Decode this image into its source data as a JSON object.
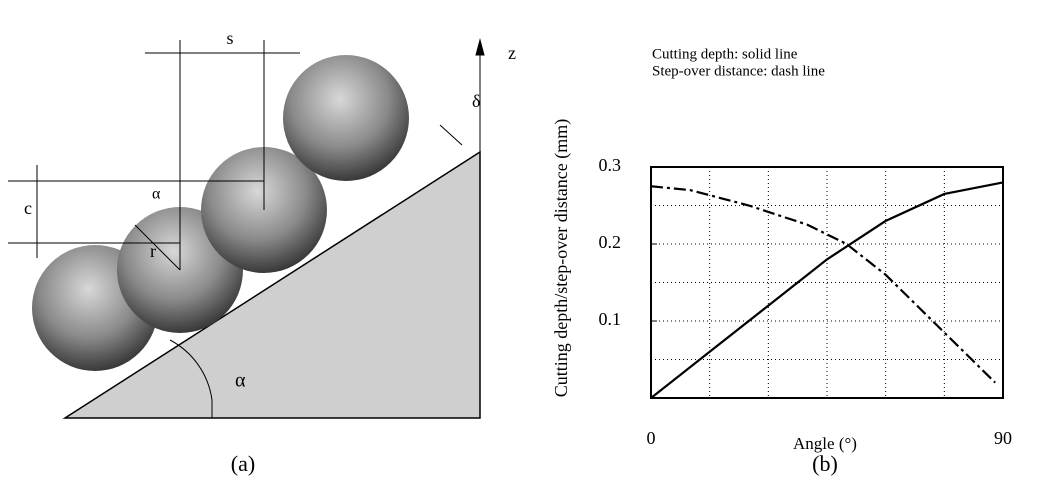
{
  "diagram": {
    "labels": {
      "s": "s",
      "z": "z",
      "delta": "δ",
      "c": "c",
      "alpha_small": "α",
      "r": "r",
      "alpha": "α"
    },
    "caption": "(a)"
  },
  "chart_data": {
    "type": "line",
    "annotations": [
      "Cutting depth: solid line",
      "Step-over distance: dash line"
    ],
    "y_label": "Cutting depth/step-over distance (mm)",
    "x_label": "Angle (°)",
    "caption": "(b)",
    "xlim": [
      0,
      90
    ],
    "ylim": [
      0,
      0.3
    ],
    "xticks": [
      0,
      90
    ],
    "yticks": [
      0.1,
      0.2,
      0.3
    ],
    "grid": true,
    "series": [
      {
        "style": "solid",
        "color": "#000000",
        "x": [
          0,
          15,
          30,
          45,
          60,
          75,
          90
        ],
        "values": [
          0.0,
          0.06,
          0.12,
          0.18,
          0.23,
          0.265,
          0.28
        ]
      },
      {
        "style": "dash",
        "color": "#000000",
        "x": [
          0,
          10,
          25,
          40,
          50,
          60,
          70,
          80,
          88
        ],
        "values": [
          0.275,
          0.27,
          0.25,
          0.225,
          0.2,
          0.16,
          0.11,
          0.06,
          0.02
        ]
      }
    ]
  }
}
